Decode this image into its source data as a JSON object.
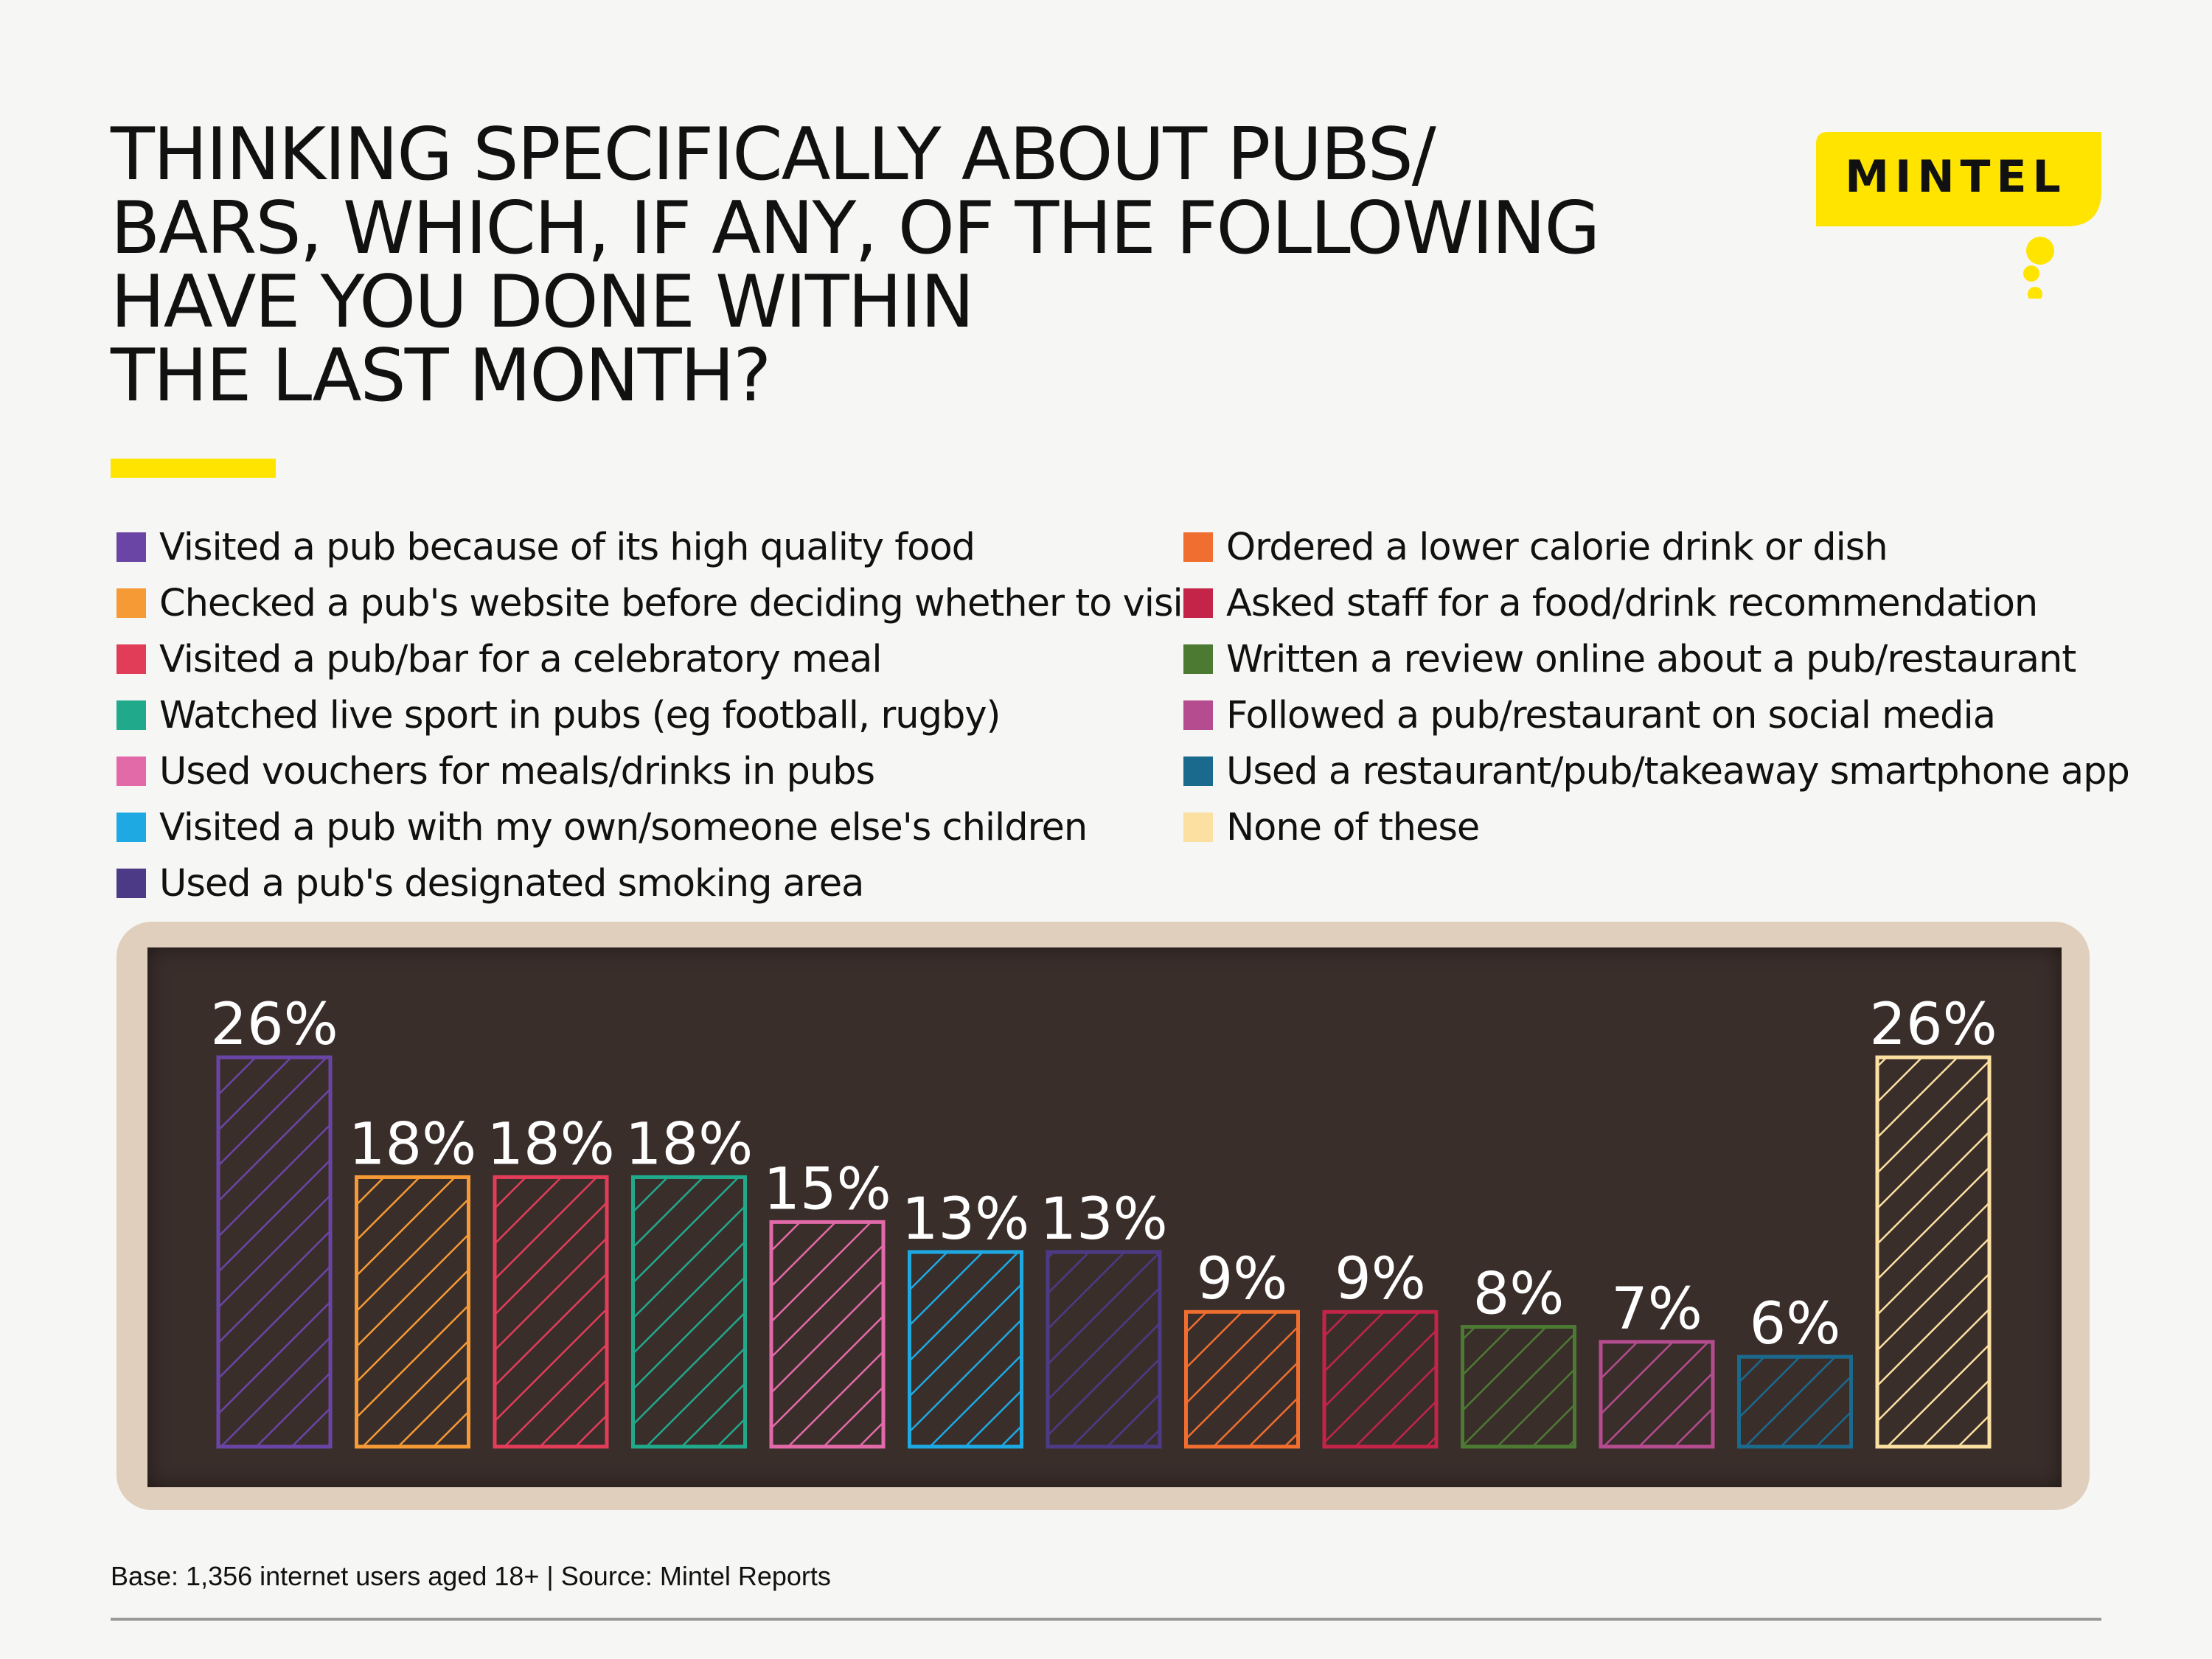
{
  "title": "THINKING SPECIFICALLY ABOUT PUBS/\nBARS, WHICH, IF ANY, OF THE FOLLOWING\nHAVE YOU DONE WITHIN\nTHE LAST MONTH?",
  "brand": {
    "name": "MINTEL",
    "color": "#ffe400"
  },
  "accent_color": "#ffe400",
  "footer": {
    "note": "Base: 1,356 internet users aged 18+ | Source: Mintel Reports"
  },
  "chart_data": {
    "type": "bar",
    "title": "THINKING SPECIFICALLY ABOUT PUBS/ BARS, WHICH, IF ANY, OF THE FOLLOWING HAVE YOU DONE WITHIN THE LAST MONTH?",
    "xlabel": "",
    "ylabel": "",
    "ylim": [
      0,
      26
    ],
    "grid": false,
    "legend_position": "top",
    "categories": [
      "Visited a pub because of its high quality food",
      "Checked a pub's website before deciding whether to visit",
      "Visited a pub/bar for a celebratory meal",
      "Watched live sport in pubs (eg football, rugby)",
      "Used vouchers for meals/drinks in pubs",
      "Visited a pub with my own/someone else's children",
      "Used a pub's designated smoking area",
      "Ordered a lower calorie drink or dish",
      "Asked staff for a food/drink recommendation",
      "Written a review online about a pub/restaurant",
      "Followed a pub/restaurant on social media",
      "Used a restaurant/pub/takeaway smartphone app",
      "None of these"
    ],
    "values": [
      26,
      18,
      18,
      18,
      15,
      13,
      13,
      9,
      9,
      8,
      7,
      6,
      26
    ],
    "value_labels": [
      "26%",
      "18%",
      "18%",
      "18%",
      "15%",
      "13%",
      "13%",
      "9%",
      "9%",
      "8%",
      "7%",
      "6%",
      "26%"
    ],
    "colors": [
      "#6a45a5",
      "#f59a35",
      "#e23d58",
      "#21a98c",
      "#e26aa8",
      "#1ea9e2",
      "#4d3a86",
      "#f06e30",
      "#c32448",
      "#4c7a33",
      "#b44c8f",
      "#1a6a8e",
      "#fbe0a1"
    ],
    "legend_left": [
      0,
      1,
      2,
      3,
      4,
      5,
      6
    ],
    "legend_right": [
      7,
      8,
      9,
      10,
      11,
      12
    ]
  }
}
